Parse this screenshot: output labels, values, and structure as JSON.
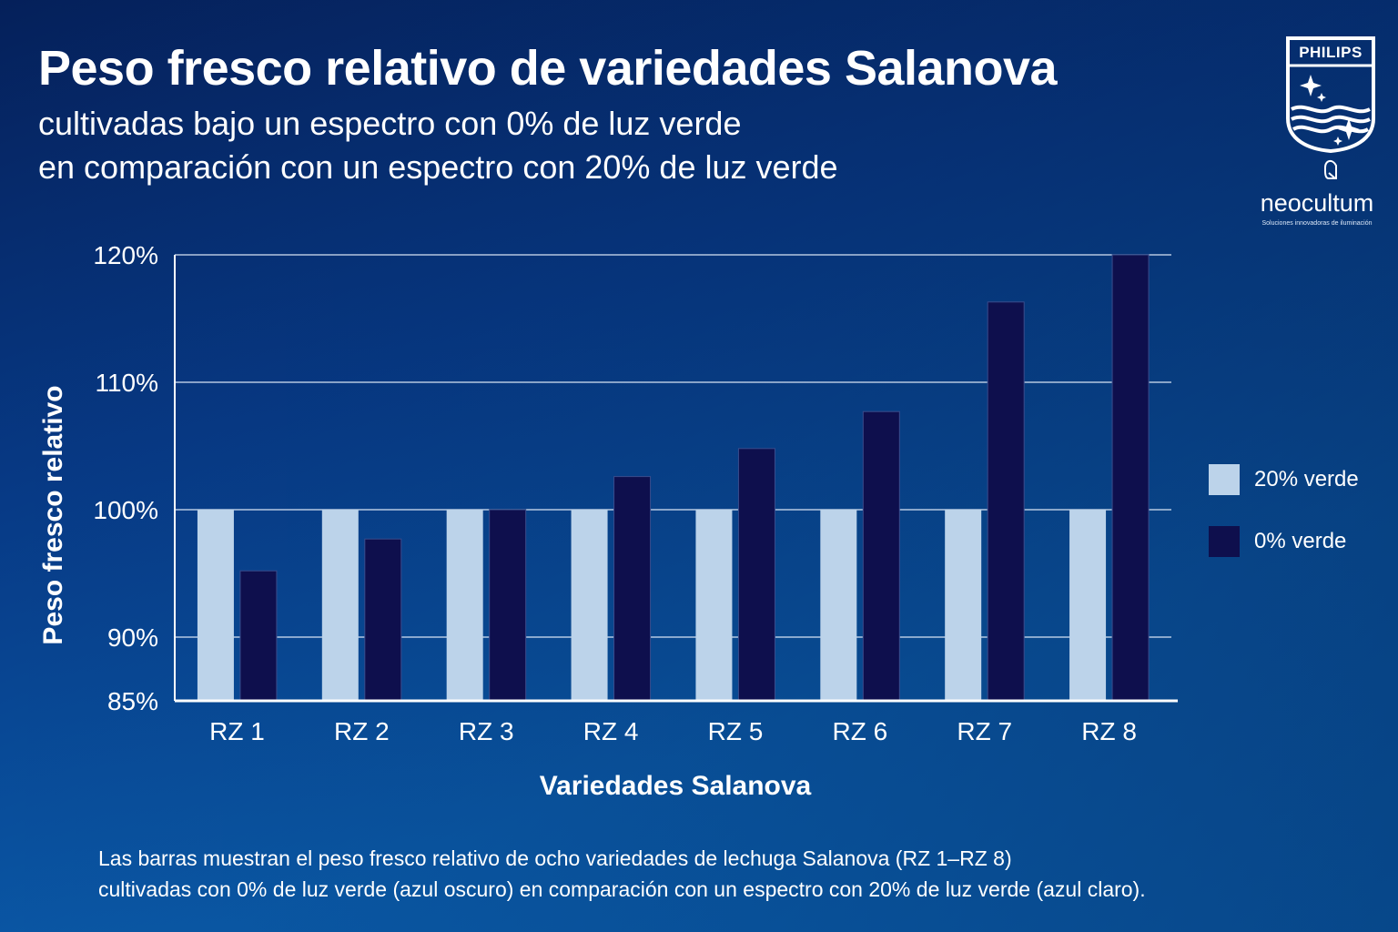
{
  "title": "Peso fresco relativo de variedades Salanova",
  "subtitle_line1": "cultivadas bajo un espectro con 0% de luz verde",
  "subtitle_line2": "en comparación con un espectro con 20% de luz verde",
  "brand": {
    "name": "PHILIPS",
    "partner": "neocultum",
    "partner_tagline": "Soluciones innovadoras de iluminación"
  },
  "caption_line1": "Las barras muestran el peso fresco relativo de ocho variedades de lechuga Salanova (RZ  1–RZ 8)",
  "caption_line2": "cultivadas con 0% de luz verde (azul oscuro) en comparación con un espectro con 20% de luz verde (azul claro).",
  "colors": {
    "series_20": "#bcd3ea",
    "series_0": "#0e0f4d"
  },
  "chart_data": {
    "type": "bar",
    "xlabel": "Variedades Salanova",
    "ylabel": "Peso fresco relativo",
    "categories": [
      "RZ 1",
      "RZ 2",
      "RZ 3",
      "RZ 4",
      "RZ 5",
      "RZ 6",
      "RZ 7",
      "RZ 8"
    ],
    "series": [
      {
        "name": "20% verde",
        "values": [
          100,
          100,
          100,
          100,
          100,
          100,
          100,
          100
        ]
      },
      {
        "name": "0% verde",
        "values": [
          95.2,
          97.7,
          100,
          102.6,
          104.8,
          107.7,
          116.3,
          120
        ]
      }
    ],
    "ylim": [
      85,
      120
    ],
    "yticks": [
      85,
      90,
      100,
      110,
      120
    ],
    "ytick_labels": [
      "85%",
      "90%",
      "100%",
      "110%",
      "120%"
    ],
    "grid": true,
    "legend_position": "right"
  }
}
